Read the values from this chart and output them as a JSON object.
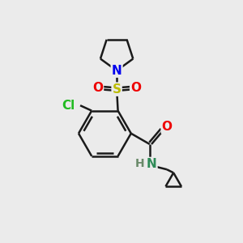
{
  "bg_color": "#ebebeb",
  "bond_color": "#1a1a1a",
  "bond_width": 1.8,
  "atom_colors": {
    "C": "#1a1a1a",
    "N_blue": "#0000ee",
    "N_teal": "#2e8b57",
    "O": "#ee0000",
    "S": "#bbbb00",
    "Cl": "#22bb22",
    "H": "#6a8a6a"
  },
  "font_size": 10,
  "fig_size": [
    3.0,
    3.0
  ],
  "dpi": 100
}
